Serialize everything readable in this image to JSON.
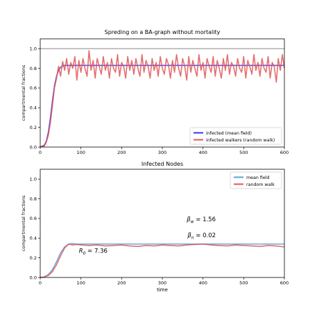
{
  "chart_data": [
    {
      "type": "line",
      "title": "Spreding on a BA-graph without mortality",
      "xlabel": "",
      "ylabel": "compartmental fractions",
      "xlim": [
        0,
        600
      ],
      "ylim": [
        0,
        1.1
      ],
      "xticks": [
        0,
        100,
        200,
        300,
        400,
        500,
        600
      ],
      "yticks": [
        0.0,
        0.2,
        0.4,
        0.6,
        0.8,
        1.0
      ],
      "xtick_labels": [
        "0",
        "100",
        "200",
        "300",
        "400",
        "500",
        "600"
      ],
      "ytick_labels": [
        "0.0",
        "0.2",
        "0.4",
        "0.6",
        "0.8",
        "1.0"
      ],
      "reference_line": {
        "y": 1.0,
        "color": "#888888"
      },
      "grid": false,
      "legend": "lower-right",
      "series": [
        {
          "name": "infected (mean field)",
          "color": "#3333ee",
          "x": [
            0,
            10,
            15,
            20,
            25,
            30,
            35,
            40,
            45,
            50,
            55,
            60,
            70,
            80,
            100,
            600
          ],
          "y": [
            0,
            0.02,
            0.06,
            0.15,
            0.3,
            0.47,
            0.62,
            0.72,
            0.78,
            0.81,
            0.825,
            0.83,
            0.83,
            0.83,
            0.83,
            0.83
          ]
        },
        {
          "name": "infected walkers  (random walk)",
          "color": "#e05555",
          "x": [
            0,
            10,
            15,
            20,
            25,
            30,
            35,
            40,
            45,
            50,
            55,
            60,
            65,
            70,
            75,
            80,
            85,
            90,
            95,
            100,
            105,
            110,
            115,
            120,
            125,
            130,
            135,
            140,
            145,
            150,
            155,
            160,
            165,
            170,
            175,
            180,
            185,
            190,
            195,
            200,
            205,
            210,
            215,
            220,
            225,
            230,
            235,
            240,
            245,
            250,
            255,
            260,
            265,
            270,
            275,
            280,
            285,
            290,
            295,
            300,
            305,
            310,
            315,
            320,
            325,
            330,
            335,
            340,
            345,
            350,
            355,
            360,
            365,
            370,
            375,
            380,
            385,
            390,
            395,
            400,
            405,
            410,
            415,
            420,
            425,
            430,
            435,
            440,
            445,
            450,
            455,
            460,
            465,
            470,
            475,
            480,
            485,
            490,
            495,
            500,
            505,
            510,
            515,
            520,
            525,
            530,
            535,
            540,
            545,
            550,
            555,
            560,
            565,
            570,
            575,
            580,
            585,
            590,
            595,
            600
          ],
          "y": [
            0,
            0.01,
            0.05,
            0.12,
            0.25,
            0.42,
            0.6,
            0.7,
            0.82,
            0.72,
            0.87,
            0.78,
            0.9,
            0.74,
            0.86,
            0.8,
            0.92,
            0.68,
            0.88,
            0.76,
            0.9,
            0.8,
            0.72,
            0.98,
            0.78,
            0.88,
            0.7,
            0.9,
            0.82,
            0.74,
            0.92,
            0.78,
            0.86,
            0.7,
            0.9,
            0.8,
            0.76,
            0.94,
            0.72,
            0.86,
            0.82,
            0.7,
            0.92,
            0.78,
            0.88,
            0.74,
            0.9,
            0.8,
            0.72,
            0.94,
            0.76,
            0.88,
            0.82,
            0.7,
            0.9,
            0.78,
            0.86,
            0.72,
            0.92,
            0.8,
            0.74,
            0.9,
            0.84,
            0.7,
            0.88,
            0.76,
            0.94,
            0.8,
            0.72,
            0.9,
            0.82,
            0.68,
            0.92,
            0.76,
            0.88,
            0.8,
            0.72,
            0.94,
            0.78,
            0.86,
            0.7,
            0.9,
            0.82,
            0.76,
            0.92,
            0.72,
            0.88,
            0.8,
            0.7,
            0.9,
            0.78,
            0.94,
            0.74,
            0.86,
            0.82,
            0.72,
            0.9,
            0.8,
            0.76,
            0.92,
            0.7,
            0.88,
            0.82,
            0.74,
            0.94,
            0.78,
            0.86,
            0.72,
            0.9,
            0.8,
            0.76,
            0.92,
            0.7,
            0.86,
            0.82,
            0.66,
            0.9,
            0.78,
            0.94,
            0.8
          ]
        }
      ]
    },
    {
      "type": "line",
      "title": "Infected Nodes",
      "xlabel": "time",
      "ylabel": "compartmental fractions",
      "xlim": [
        0,
        600
      ],
      "ylim": [
        0,
        1.1
      ],
      "xticks": [
        0,
        100,
        200,
        300,
        400,
        500,
        600
      ],
      "yticks": [
        0.0,
        0.2,
        0.4,
        0.6,
        0.8,
        1.0
      ],
      "xtick_labels": [
        "0",
        "100",
        "200",
        "300",
        "400",
        "500",
        "600"
      ],
      "ytick_labels": [
        "0.0",
        "0.2",
        "0.4",
        "0.6",
        "0.8",
        "1.0"
      ],
      "grid": false,
      "legend": "top-right",
      "annotations": [
        {
          "text": "β",
          "sub": "w",
          "value": " = 1.56",
          "x": 360,
          "y": 0.57
        },
        {
          "text": "β",
          "sub": "n",
          "value": " = 0.02",
          "x": 362,
          "y": 0.41
        },
        {
          "text": "R",
          "sub": "0",
          "value": " = 7.36",
          "x": 95,
          "y": 0.25
        }
      ],
      "series": [
        {
          "name": "mean field",
          "color": "#5aa0d8",
          "x": [
            0,
            10,
            20,
            30,
            40,
            50,
            60,
            70,
            80,
            90,
            100,
            600
          ],
          "y": [
            0,
            0.005,
            0.03,
            0.08,
            0.16,
            0.25,
            0.31,
            0.34,
            0.345,
            0.34,
            0.34,
            0.34
          ]
        },
        {
          "name": "random walk",
          "color": "#e05555",
          "x": [
            0,
            10,
            20,
            30,
            40,
            50,
            60,
            70,
            80,
            90,
            100,
            120,
            140,
            160,
            180,
            200,
            220,
            240,
            260,
            280,
            300,
            320,
            340,
            360,
            380,
            400,
            420,
            440,
            460,
            480,
            500,
            520,
            540,
            560,
            580,
            600
          ],
          "y": [
            0,
            0.005,
            0.02,
            0.06,
            0.13,
            0.22,
            0.3,
            0.34,
            0.33,
            0.335,
            0.33,
            0.325,
            0.33,
            0.32,
            0.325,
            0.33,
            0.32,
            0.315,
            0.325,
            0.32,
            0.33,
            0.325,
            0.32,
            0.33,
            0.335,
            0.34,
            0.33,
            0.325,
            0.32,
            0.33,
            0.325,
            0.32,
            0.315,
            0.325,
            0.32,
            0.31
          ]
        }
      ]
    }
  ]
}
